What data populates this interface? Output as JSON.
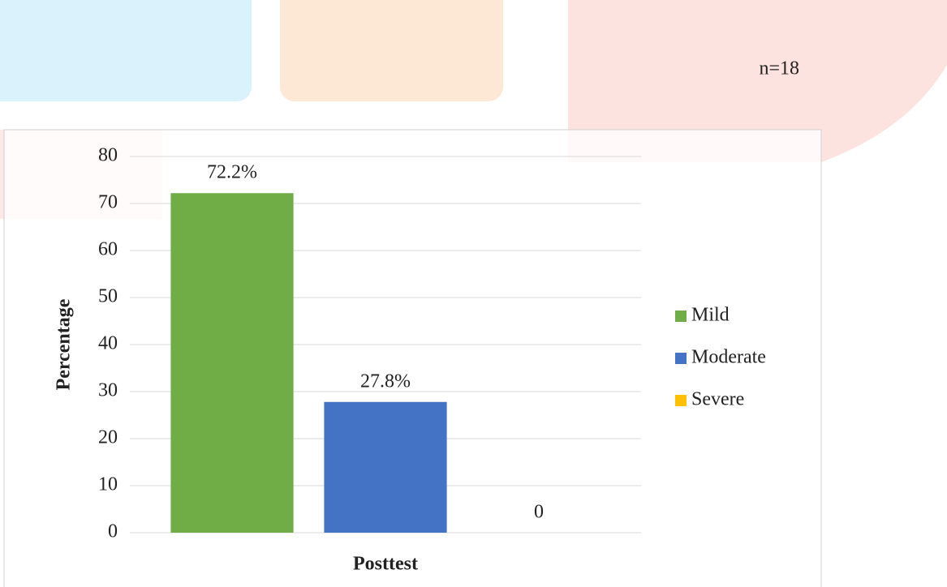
{
  "chart_data": {
    "type": "bar",
    "note": "n=18",
    "ylabel": "Percentage",
    "categories": [
      "Posttest"
    ],
    "series": [
      {
        "name": "Mild",
        "color": "#70ad47",
        "values": [
          72.2
        ],
        "value_labels": [
          "72.2%"
        ]
      },
      {
        "name": "Moderate",
        "color": "#4472c4",
        "values": [
          27.8
        ],
        "value_labels": [
          "27.8%"
        ]
      },
      {
        "name": "Severe",
        "color": "#ffc000",
        "values": [
          0
        ],
        "value_labels": [
          "0"
        ]
      }
    ],
    "ylim": [
      0,
      80
    ],
    "yticks": [
      0,
      10,
      20,
      30,
      40,
      50,
      60,
      70,
      80
    ],
    "grid": true,
    "legend": "right"
  }
}
